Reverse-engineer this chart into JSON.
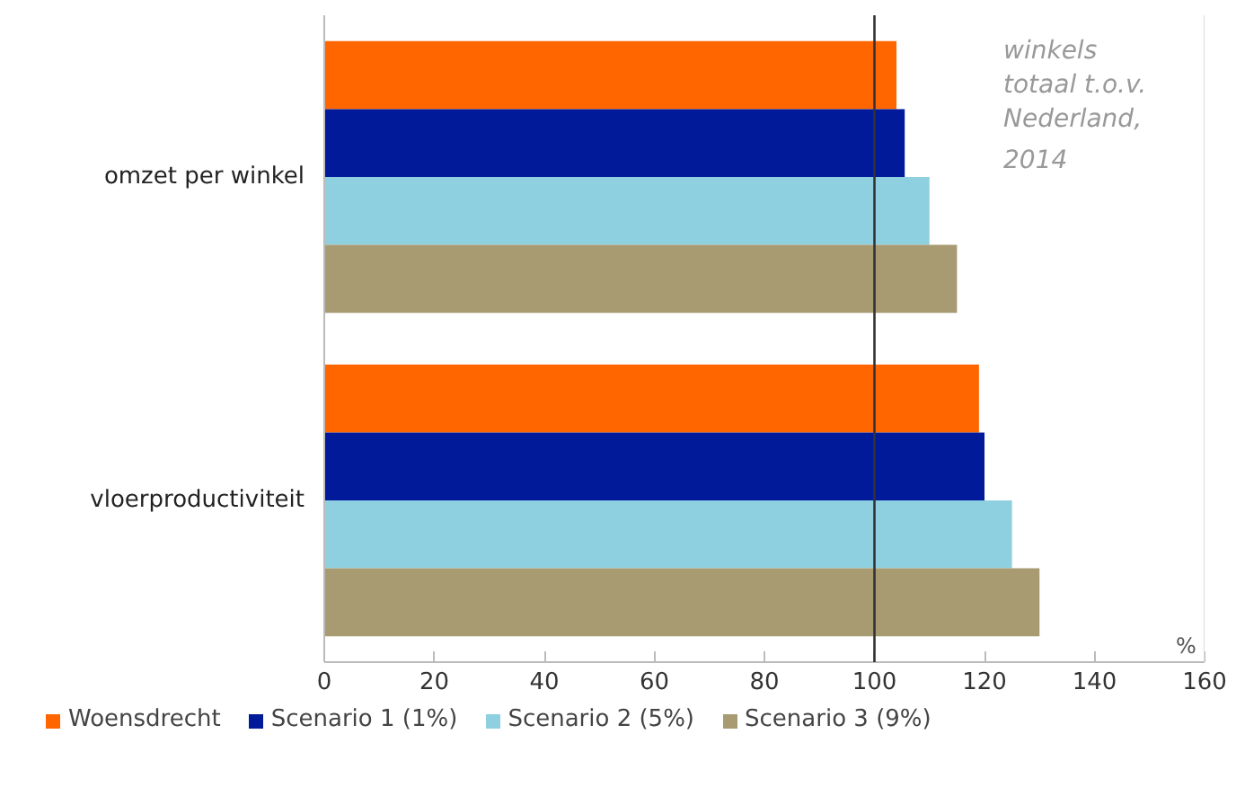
{
  "chart_data": {
    "type": "bar",
    "orientation": "horizontal",
    "categories": [
      "omzet per winkel",
      "vloerproductiviteit"
    ],
    "series": [
      {
        "name": "Woensdrecht",
        "color": "#ff6600",
        "values": [
          104,
          119
        ]
      },
      {
        "name": "Scenario 1 (1%)",
        "color": "#001a99",
        "values": [
          105.5,
          120
        ]
      },
      {
        "name": "Scenario 2 (5%)",
        "color": "#8fd0e0",
        "values": [
          110,
          125
        ]
      },
      {
        "name": "Scenario 3 (9%)",
        "color": "#a89b72",
        "values": [
          115,
          130
        ]
      }
    ],
    "xlim": [
      0,
      160
    ],
    "xticks": [
      0,
      20,
      40,
      60,
      80,
      100,
      120,
      140,
      160
    ],
    "xlabel": "%",
    "ref_lines": [
      {
        "axis": "x",
        "value": 100,
        "label": null,
        "color": "#333333"
      }
    ],
    "annotations": [
      "winkels totaal t.o.v. Nederland, 2014"
    ],
    "grid": false,
    "legend": "bottom"
  }
}
